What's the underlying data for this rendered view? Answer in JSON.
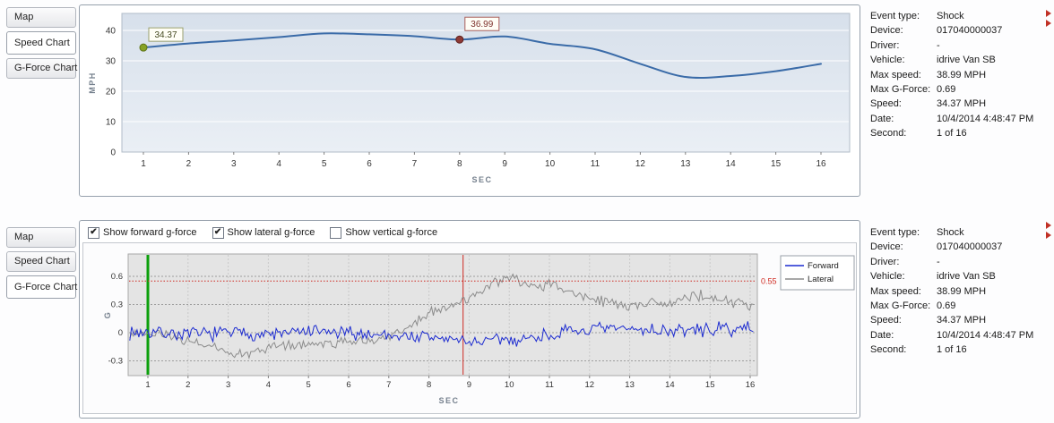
{
  "icons": {
    "checkmark": "✔",
    "collapse_arrow": "red-right-triangle"
  },
  "panels": {
    "speed": {
      "tabs": [
        {
          "label": "Map",
          "selected": false
        },
        {
          "label": "Speed Chart",
          "selected": true
        },
        {
          "label": "G-Force Chart",
          "selected": false
        }
      ]
    },
    "gforce": {
      "tabs": [
        {
          "label": "Map",
          "selected": false
        },
        {
          "label": "Speed Chart",
          "selected": false
        },
        {
          "label": "G-Force Chart",
          "selected": true
        }
      ],
      "checkboxes": [
        {
          "label": "Show forward g-force",
          "checked": true
        },
        {
          "label": "Show lateral g-force",
          "checked": true
        },
        {
          "label": "Show vertical g-force",
          "checked": false
        }
      ]
    }
  },
  "info": {
    "rows": [
      {
        "label": "Event type:",
        "value": "Shock"
      },
      {
        "label": "Device:",
        "value": "017040000037"
      },
      {
        "label": "Driver:",
        "value": "-"
      },
      {
        "label": "Vehicle:",
        "value": "idrive Van SB"
      },
      {
        "label": "Max speed:",
        "value": "38.99 MPH"
      },
      {
        "label": "Max G-Force:",
        "value": "0.69"
      },
      {
        "label": "Speed:",
        "value": "34.37 MPH"
      },
      {
        "label": "Date:",
        "value": "10/4/2014 4:48:47 PM"
      },
      {
        "label": "Second:",
        "value": "1 of 16"
      }
    ]
  },
  "chart_data": [
    {
      "id": "speed",
      "type": "line",
      "title": "Speed Chart",
      "xlabel": "SEC",
      "ylabel": "MPH",
      "x": [
        1,
        2,
        3,
        4,
        5,
        6,
        7,
        8,
        9,
        10,
        11,
        12,
        13,
        14,
        15,
        16
      ],
      "values": [
        34.37,
        35.7,
        36.7,
        37.8,
        38.99,
        38.7,
        38.1,
        36.99,
        38.0,
        35.6,
        33.8,
        29.0,
        24.7,
        25.0,
        26.6,
        29.0
      ],
      "y_ticks": [
        0,
        10,
        20,
        30,
        40
      ],
      "ylim": [
        0,
        45
      ],
      "grid": true,
      "line_color": "#3a6ba8",
      "start_marker": {
        "x": 1,
        "value": 34.37,
        "label": "34.37",
        "fill": "#87a225",
        "stroke": "#5d7317",
        "box_border": "#9aa06e",
        "text_color": "#44491f"
      },
      "event_marker": {
        "x": 8,
        "value": 36.99,
        "label": "36.99",
        "fill": "#8e3a35",
        "stroke": "#5f1f1c",
        "box_border": "#aa5f5a",
        "text_color": "#7c2f2a"
      }
    },
    {
      "id": "gforce",
      "type": "line",
      "title": "G-Force Chart",
      "xlabel": "SEC",
      "ylabel": "G",
      "x_ticks": [
        1,
        2,
        3,
        4,
        5,
        6,
        7,
        8,
        9,
        10,
        11,
        12,
        13,
        14,
        15,
        16
      ],
      "y_ticks": [
        -0.3,
        0,
        0.3,
        0.6
      ],
      "ylim": [
        -0.45,
        0.82
      ],
      "grid": true,
      "legend_position": "right",
      "threshold": {
        "value": 0.55,
        "label": "0.55",
        "color": "#cf2a21"
      },
      "second_line": {
        "x": 1,
        "color": "#0ca00c"
      },
      "event_line": {
        "x": 8.85,
        "color": "#cf2a21"
      },
      "series": [
        {
          "name": "Forward",
          "color": "#1c2bd0",
          "seed": 7,
          "noise": 0.09,
          "trend_x": [
            0.55,
            1,
            2,
            3,
            4,
            5,
            6,
            7,
            7.5,
            8,
            8.5,
            9,
            9.4,
            9.8,
            10.2,
            10.6,
            11,
            12,
            13,
            14,
            15,
            16.1
          ],
          "trend_y": [
            0.0,
            0.01,
            -0.02,
            0.0,
            -0.02,
            0.01,
            -0.01,
            -0.02,
            -0.04,
            -0.05,
            -0.07,
            -0.09,
            -0.1,
            -0.07,
            -0.08,
            -0.05,
            -0.02,
            0.03,
            0.04,
            0.02,
            0.03,
            0.05
          ]
        },
        {
          "name": "Lateral",
          "color": "#8c8c8c",
          "seed": 23,
          "noise": 0.07,
          "trend_x": [
            0.55,
            1,
            1.5,
            2,
            2.5,
            3,
            3.5,
            4,
            4.5,
            5,
            5.5,
            6,
            6.5,
            7,
            7.4,
            7.8,
            8.2,
            8.6,
            9,
            9.4,
            9.8,
            10.1,
            10.4,
            10.7,
            11,
            11.3,
            11.7,
            12,
            12.4,
            12.8,
            13.2,
            13.6,
            14,
            14.4,
            14.8,
            15.2,
            15.6,
            16.1
          ],
          "trend_y": [
            0.0,
            -0.02,
            -0.04,
            -0.08,
            -0.14,
            -0.22,
            -0.21,
            -0.16,
            -0.13,
            -0.12,
            -0.11,
            -0.1,
            -0.08,
            -0.04,
            0.05,
            0.15,
            0.24,
            0.28,
            0.38,
            0.46,
            0.56,
            0.58,
            0.52,
            0.5,
            0.52,
            0.46,
            0.42,
            0.38,
            0.33,
            0.3,
            0.29,
            0.34,
            0.3,
            0.37,
            0.4,
            0.35,
            0.32,
            0.28
          ]
        }
      ]
    }
  ]
}
